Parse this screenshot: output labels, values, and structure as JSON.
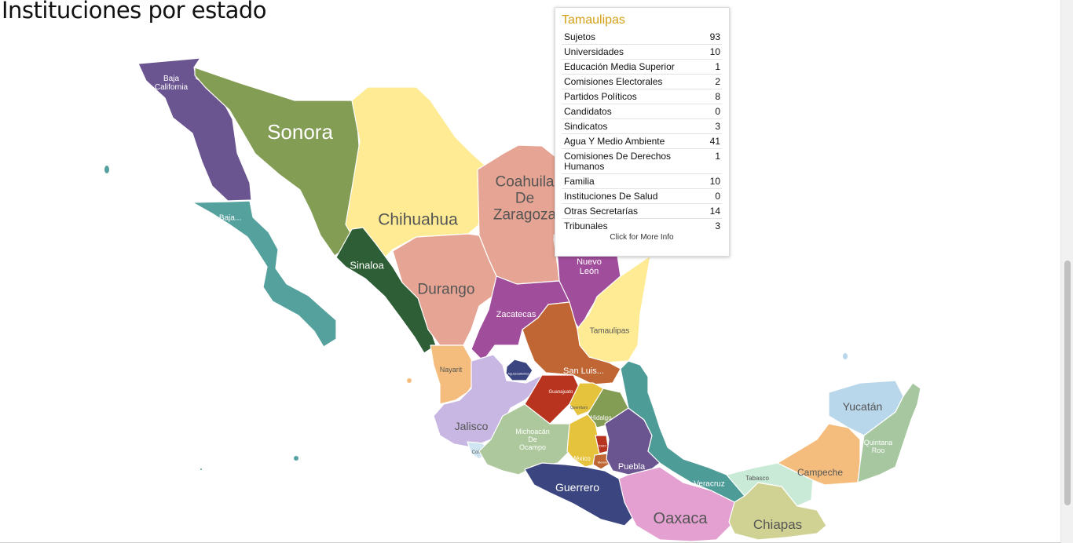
{
  "page": {
    "title": "Instituciones por estado"
  },
  "map": {
    "states": [
      {
        "name": "Baja California",
        "label": "Baja\nCalifornia",
        "color": "#6b5590"
      },
      {
        "name": "Baja California Sur",
        "label": "Baja...",
        "color": "#55a19e"
      },
      {
        "name": "Sonora",
        "label": "Sonora",
        "color": "#849d55"
      },
      {
        "name": "Chihuahua",
        "label": "Chihuahua",
        "color": "#feeb94"
      },
      {
        "name": "Coahuila De Zaragoza",
        "label": "Coahuila\nDe\nZaragoza",
        "color": "#e6a594"
      },
      {
        "name": "Nuevo León",
        "label": "Nuevo\nLeón",
        "color": "#a04d9b"
      },
      {
        "name": "Tamaulipas",
        "label": "Tamaulipas",
        "color": "#feeb94"
      },
      {
        "name": "Sinaloa",
        "label": "Sinaloa",
        "color": "#2e5e36"
      },
      {
        "name": "Durango",
        "label": "Durango",
        "color": "#e6a594"
      },
      {
        "name": "Zacatecas",
        "label": "Zacatecas",
        "color": "#a04d9b"
      },
      {
        "name": "San Luis Potosí",
        "label": "San Luis...",
        "color": "#c06634"
      },
      {
        "name": "Nayarit",
        "label": "Nayarit",
        "color": "#f5bd7d"
      },
      {
        "name": "Aguascalientes",
        "label": "Aguascalientes",
        "color": "#3b4680"
      },
      {
        "name": "Jalisco",
        "label": "Jalisco",
        "color": "#c8b7e3"
      },
      {
        "name": "Guanajuato",
        "label": "Guanajuato",
        "color": "#b8341f"
      },
      {
        "name": "Querétaro",
        "label": "Querétaro",
        "color": "#e6c33d"
      },
      {
        "name": "Hidalgo",
        "label": "Hidalgo",
        "color": "#849d55"
      },
      {
        "name": "Colima",
        "label": "Colima",
        "color": "#cfe5f1"
      },
      {
        "name": "Michoacán De Ocampo",
        "label": "Michoacán\nDe\nOcampo",
        "color": "#adc89c"
      },
      {
        "name": "México",
        "label": "México",
        "color": "#e6c33d"
      },
      {
        "name": "Ciudad de México",
        "label": "CDMX",
        "color": "#b8341f"
      },
      {
        "name": "Morelos",
        "label": "Morelos",
        "color": "#c06634"
      },
      {
        "name": "Tlaxcala",
        "label": "Tlaxcala",
        "color": "#2e5e36"
      },
      {
        "name": "Puebla",
        "label": "Puebla",
        "color": "#6b5590"
      },
      {
        "name": "Veracruz",
        "label": "Veracruz",
        "color": "#4e9c98"
      },
      {
        "name": "Guerrero",
        "label": "Guerrero",
        "color": "#3b4680"
      },
      {
        "name": "Oaxaca",
        "label": "Oaxaca",
        "color": "#e3a0d1"
      },
      {
        "name": "Chiapas",
        "label": "Chiapas",
        "color": "#d0d293"
      },
      {
        "name": "Tabasco",
        "label": "Tabasco",
        "color": "#c8ead6"
      },
      {
        "name": "Campeche",
        "label": "Campeche",
        "color": "#f5bd7d"
      },
      {
        "name": "Yucatán",
        "label": "Yucatán",
        "color": "#b8d7ea"
      },
      {
        "name": "Quintana Roo",
        "label": "Quintana\nRoo",
        "color": "#a6c7a0"
      }
    ]
  },
  "tooltip": {
    "state": "Tamaulipas",
    "rows": [
      {
        "label": "Sujetos",
        "value": "93"
      },
      {
        "label": "Universidades",
        "value": "10"
      },
      {
        "label": "Educación Media Superior",
        "value": "1"
      },
      {
        "label": "Comisiones Electorales",
        "value": "2"
      },
      {
        "label": "Partidos Políticos",
        "value": "8"
      },
      {
        "label": "Candidatos",
        "value": "0"
      },
      {
        "label": "Sindicatos",
        "value": "3"
      },
      {
        "label": "Agua Y Medio Ambiente",
        "value": "41"
      },
      {
        "label": "Comisiones De Derechos Humanos",
        "value": "1"
      },
      {
        "label": "Familia",
        "value": "10"
      },
      {
        "label": "Instituciones De Salud",
        "value": "0"
      },
      {
        "label": "Otras Secretarías",
        "value": "14"
      },
      {
        "label": "Tribunales",
        "value": "3"
      }
    ],
    "more_link": "Click for More Info"
  },
  "colors": {
    "title": "#d4a017",
    "label_light": "#ffffff",
    "label_dark": "#555555"
  }
}
